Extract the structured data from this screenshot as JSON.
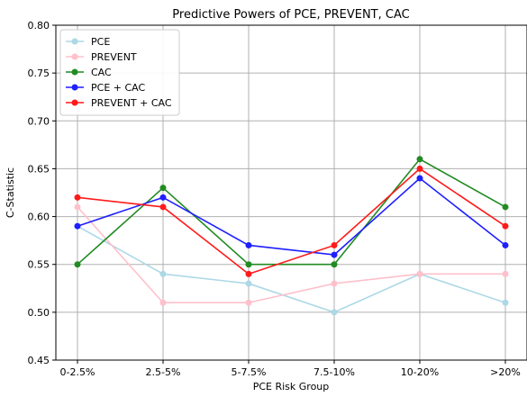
{
  "chart_data": {
    "type": "line",
    "title": "Predictive Powers of PCE, PREVENT, CAC",
    "xlabel": "PCE Risk Group",
    "ylabel": "C-Statistic",
    "categories": [
      "0-2.5%",
      "2.5-5%",
      "5-7.5%",
      "7.5-10%",
      "10-20%",
      ">20%"
    ],
    "ylim": [
      0.45,
      0.8
    ],
    "yticks": [
      "0.45",
      "0.50",
      "0.55",
      "0.60",
      "0.65",
      "0.70",
      "0.75",
      "0.80"
    ],
    "grid": true,
    "legend_position": "top-left",
    "series": [
      {
        "name": "PCE",
        "color": "#add8e6",
        "values": [
          0.59,
          0.54,
          0.53,
          0.5,
          0.54,
          0.51
        ]
      },
      {
        "name": "PREVENT",
        "color": "#ffc0cb",
        "values": [
          0.61,
          0.51,
          0.51,
          0.53,
          0.54,
          0.54
        ]
      },
      {
        "name": "CAC",
        "color": "#228b22",
        "values": [
          0.55,
          0.63,
          0.55,
          0.55,
          0.66,
          0.61
        ]
      },
      {
        "name": "PCE + CAC",
        "color": "#1f1fff",
        "values": [
          0.59,
          0.62,
          0.57,
          0.56,
          0.64,
          0.57
        ]
      },
      {
        "name": "PREVENT + CAC",
        "color": "#ff1a1a",
        "values": [
          0.62,
          0.61,
          0.54,
          0.57,
          0.65,
          0.59
        ]
      }
    ]
  }
}
